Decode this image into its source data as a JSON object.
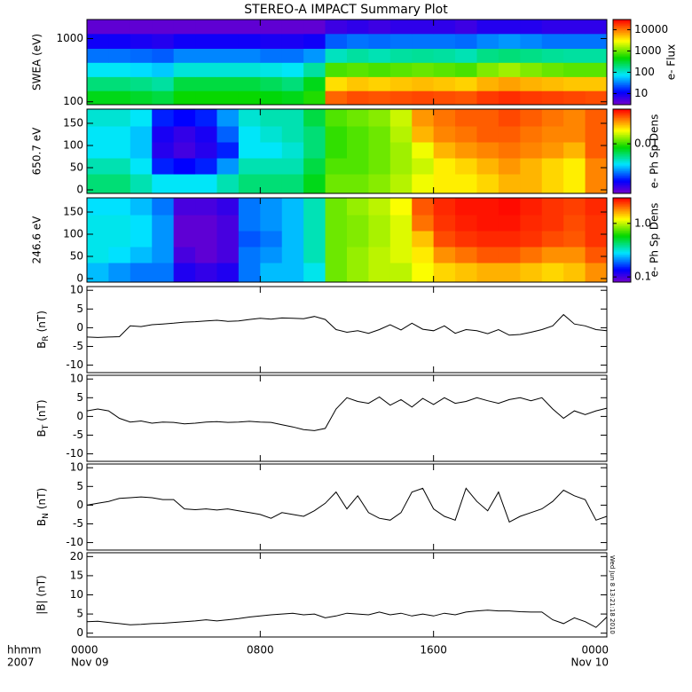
{
  "title": "STEREO-A IMPACT Summary Plot",
  "timestamp": "Wed Jun  8 13:21:18 2010",
  "x_axis": {
    "xlim": [
      0,
      24
    ],
    "xticks": [
      {
        "value": 0,
        "label": "0000"
      },
      {
        "value": 8,
        "label": "0800"
      },
      {
        "value": 16,
        "label": "1600"
      },
      {
        "value": 24,
        "label": "0000"
      }
    ],
    "dates": [
      {
        "value": 0,
        "label": "Nov 09"
      },
      {
        "value": 24,
        "label": "Nov 10"
      }
    ],
    "left_labels": [
      "hhmm",
      "2007"
    ],
    "x": [
      0,
      0.5,
      1,
      1.5,
      2,
      2.5,
      3,
      3.5,
      4,
      4.5,
      5,
      5.5,
      6,
      6.5,
      7,
      7.5,
      8,
      8.5,
      9,
      9.5,
      10,
      10.5,
      11,
      11.5,
      12,
      12.5,
      13,
      13.5,
      14,
      14.5,
      15,
      15.5,
      16,
      16.5,
      17,
      17.5,
      18,
      18.5,
      19,
      19.5,
      20,
      20.5,
      21,
      21.5,
      22,
      22.5,
      23,
      23.5,
      24
    ],
    "xbins": [
      0,
      1,
      2,
      3,
      4,
      5,
      6,
      7,
      8,
      9,
      10,
      11,
      12,
      13,
      14,
      15,
      16,
      17,
      18,
      19,
      20,
      21,
      22,
      23,
      24
    ]
  },
  "chart_data": [
    {
      "type": "heatmap",
      "ylabel": "SWEA (eV)",
      "ylog": true,
      "ylim": [
        90,
        2000
      ],
      "yticks": [
        100,
        1000
      ],
      "ybins": [
        90,
        150,
        250,
        420,
        700,
        1200,
        2000
      ],
      "values": [
        [
          400,
          400,
          350,
          300,
          500,
          500,
          500,
          500,
          450,
          400,
          600,
          12000,
          15000,
          14000,
          15000,
          16000,
          15000,
          14000,
          18000,
          20000,
          18000,
          17000,
          16000,
          15000
        ],
        [
          200,
          200,
          180,
          150,
          300,
          300,
          300,
          300,
          250,
          200,
          400,
          4000,
          5000,
          4500,
          5000,
          5500,
          5000,
          4500,
          6000,
          7000,
          6000,
          5500,
          5000,
          5000
        ],
        [
          80,
          80,
          70,
          60,
          100,
          100,
          100,
          100,
          90,
          80,
          150,
          800,
          900,
          800,
          900,
          1000,
          900,
          800,
          1200,
          1500,
          1200,
          1000,
          900,
          900
        ],
        [
          30,
          30,
          28,
          25,
          35,
          35,
          35,
          35,
          30,
          30,
          40,
          120,
          150,
          130,
          150,
          160,
          150,
          130,
          180,
          200,
          180,
          160,
          150,
          150
        ],
        [
          10,
          10,
          9,
          8,
          10,
          10,
          10,
          10,
          9,
          9,
          10,
          25,
          30,
          28,
          30,
          30,
          30,
          28,
          35,
          40,
          35,
          30,
          30,
          30
        ],
        [
          4,
          4,
          4,
          4,
          4,
          4,
          4,
          4,
          4,
          4,
          4,
          6,
          7,
          6,
          7,
          7,
          7,
          6,
          8,
          8,
          8,
          7,
          7,
          7
        ]
      ],
      "colorbar": {
        "label": "e- Flux",
        "log": true,
        "lim": [
          3,
          30000
        ],
        "ticks": [
          10,
          100,
          1000,
          10000
        ]
      }
    },
    {
      "type": "heatmap",
      "ylabel": "650.7 eV",
      "ylog": false,
      "ylim": [
        -8,
        182
      ],
      "yticks": [
        0,
        50,
        100,
        150
      ],
      "ybins": [
        -8,
        36,
        72,
        108,
        144,
        182
      ],
      "values": [
        [
          0.006,
          0.006,
          0.005,
          0.004,
          0.004,
          0.004,
          0.005,
          0.006,
          0.006,
          0.006,
          0.008,
          0.012,
          0.012,
          0.013,
          0.015,
          0.018,
          0.02,
          0.02,
          0.022,
          0.025,
          0.025,
          0.022,
          0.02,
          0.03
        ],
        [
          0.005,
          0.005,
          0.004,
          0.002,
          0.0018,
          0.002,
          0.003,
          0.005,
          0.005,
          0.005,
          0.007,
          0.011,
          0.011,
          0.012,
          0.014,
          0.016,
          0.02,
          0.022,
          0.025,
          0.028,
          0.025,
          0.022,
          0.02,
          0.03
        ],
        [
          0.004,
          0.004,
          0.0035,
          0.0015,
          0.0013,
          0.0015,
          0.002,
          0.004,
          0.004,
          0.0045,
          0.006,
          0.01,
          0.011,
          0.012,
          0.014,
          0.018,
          0.025,
          0.028,
          0.03,
          0.032,
          0.03,
          0.028,
          0.025,
          0.035
        ],
        [
          0.004,
          0.004,
          0.0035,
          0.0016,
          0.0014,
          0.0016,
          0.0025,
          0.004,
          0.0045,
          0.005,
          0.006,
          0.01,
          0.011,
          0.012,
          0.015,
          0.025,
          0.03,
          0.032,
          0.035,
          0.035,
          0.032,
          0.03,
          0.03,
          0.035
        ],
        [
          0.0045,
          0.0045,
          0.004,
          0.002,
          0.0018,
          0.002,
          0.003,
          0.0045,
          0.005,
          0.005,
          0.007,
          0.011,
          0.012,
          0.013,
          0.016,
          0.028,
          0.032,
          0.035,
          0.035,
          0.038,
          0.035,
          0.032,
          0.03,
          0.035
        ]
      ],
      "colorbar": {
        "label": "e- Ph Sp Dens",
        "log": true,
        "lim": [
          0.001,
          0.05
        ],
        "ticks": [
          0.01
        ]
      }
    },
    {
      "type": "heatmap",
      "ylabel": "246.6 eV",
      "ylog": false,
      "ylim": [
        -8,
        182
      ],
      "yticks": [
        0,
        50,
        100,
        150
      ],
      "ybins": [
        -8,
        36,
        72,
        108,
        144,
        182
      ],
      "values": [
        [
          0.25,
          0.22,
          0.2,
          0.2,
          0.12,
          0.11,
          0.12,
          0.2,
          0.25,
          0.25,
          0.3,
          0.8,
          0.9,
          1.0,
          1.0,
          1.2,
          1.4,
          1.5,
          1.6,
          1.6,
          1.5,
          1.4,
          1.5,
          1.8
        ],
        [
          0.3,
          0.28,
          0.25,
          0.22,
          0.1,
          0.09,
          0.1,
          0.2,
          0.22,
          0.25,
          0.35,
          0.8,
          0.9,
          1.0,
          1.1,
          1.3,
          1.8,
          2.0,
          2.2,
          2.2,
          2.0,
          1.8,
          1.8,
          2.2
        ],
        [
          0.3,
          0.3,
          0.28,
          0.22,
          0.09,
          0.09,
          0.1,
          0.18,
          0.2,
          0.25,
          0.35,
          0.8,
          0.85,
          0.95,
          1.1,
          1.5,
          2.3,
          2.5,
          2.6,
          2.6,
          2.5,
          2.3,
          2.2,
          2.5
        ],
        [
          0.3,
          0.3,
          0.28,
          0.22,
          0.09,
          0.09,
          0.1,
          0.2,
          0.22,
          0.25,
          0.35,
          0.8,
          0.85,
          0.95,
          1.1,
          2.0,
          2.5,
          2.7,
          2.8,
          2.8,
          2.6,
          2.5,
          2.3,
          2.5
        ],
        [
          0.28,
          0.28,
          0.25,
          0.2,
          0.1,
          0.1,
          0.11,
          0.2,
          0.22,
          0.25,
          0.35,
          0.8,
          0.9,
          1.0,
          1.2,
          2.2,
          2.6,
          2.8,
          2.8,
          2.9,
          2.7,
          2.5,
          2.4,
          2.6
        ]
      ],
      "colorbar": {
        "label": "e- Ph Sp Dens",
        "log": true,
        "lim": [
          0.08,
          3
        ],
        "ticks": [
          0.1,
          {
            "value": 1,
            "label": "1.0"
          }
        ]
      }
    },
    {
      "type": "line",
      "ylabel": [
        "B",
        "R",
        "(nT)"
      ],
      "ylim": [
        -12,
        11
      ],
      "yticks": [
        -10,
        -5,
        0,
        5,
        10
      ],
      "color": "#000000",
      "values": [
        -2.5,
        -2.6,
        -2.5,
        -2.4,
        0.5,
        0.3,
        0.8,
        1.0,
        1.2,
        1.5,
        1.6,
        1.8,
        2.0,
        1.7,
        1.8,
        2.2,
        2.5,
        2.3,
        2.6,
        2.5,
        2.4,
        3.0,
        2.2,
        -0.5,
        -1.2,
        -0.8,
        -1.5,
        -0.5,
        0.8,
        -0.6,
        1.2,
        -0.4,
        -0.8,
        0.5,
        -1.5,
        -0.5,
        -0.8,
        -1.6,
        -0.5,
        -2.0,
        -1.8,
        -1.2,
        -0.5,
        0.5,
        3.5,
        1.0,
        0.5,
        -0.5,
        -0.8
      ]
    },
    {
      "type": "line",
      "ylabel": [
        "B",
        "T",
        "(nT)"
      ],
      "ylim": [
        -12,
        11
      ],
      "yticks": [
        -10,
        -5,
        0,
        5,
        10
      ],
      "color": "#000000",
      "values": [
        1.5,
        2.0,
        1.5,
        -0.5,
        -1.5,
        -1.2,
        -1.8,
        -1.5,
        -1.6,
        -2.0,
        -1.8,
        -1.5,
        -1.4,
        -1.6,
        -1.5,
        -1.3,
        -1.5,
        -1.6,
        -2.2,
        -2.8,
        -3.5,
        -3.8,
        -3.2,
        2.0,
        5.0,
        4.0,
        3.5,
        5.2,
        3.0,
        4.5,
        2.5,
        4.8,
        3.2,
        5.0,
        3.5,
        4.0,
        5.0,
        4.2,
        3.5,
        4.5,
        5.0,
        4.2,
        5.0,
        2.0,
        -0.5,
        1.5,
        0.5,
        1.5,
        2.2
      ]
    },
    {
      "type": "line",
      "ylabel": [
        "B",
        "N",
        "(nT)"
      ],
      "ylim": [
        -12,
        11
      ],
      "yticks": [
        -10,
        -5,
        0,
        5,
        10
      ],
      "color": "#000000",
      "values": [
        0,
        0.5,
        1.0,
        1.8,
        2.0,
        2.2,
        2.0,
        1.5,
        1.5,
        -1.0,
        -1.2,
        -1.0,
        -1.3,
        -1.0,
        -1.5,
        -2.0,
        -2.5,
        -3.5,
        -2.0,
        -2.5,
        -3.0,
        -1.5,
        0.5,
        3.5,
        -1.0,
        2.5,
        -2.0,
        -3.5,
        -4.0,
        -2.0,
        3.5,
        4.5,
        -1.0,
        -3.0,
        -4.0,
        4.5,
        1.0,
        -1.5,
        3.5,
        -4.5,
        -3.0,
        -2.0,
        -1.0,
        1.0,
        4.0,
        2.5,
        1.5,
        -4.0,
        -3.0
      ]
    },
    {
      "type": "line",
      "ylabel": "|B| (nT)",
      "ylim": [
        -1,
        21
      ],
      "yticks": [
        0,
        5,
        10,
        15,
        20
      ],
      "color": "#000000",
      "values": [
        3.0,
        3.1,
        2.8,
        2.5,
        2.2,
        2.3,
        2.5,
        2.6,
        2.8,
        3.0,
        3.2,
        3.5,
        3.2,
        3.5,
        3.8,
        4.2,
        4.5,
        4.8,
        5.0,
        5.2,
        4.8,
        5.0,
        4.0,
        4.5,
        5.2,
        5.0,
        4.8,
        5.5,
        4.8,
        5.2,
        4.5,
        5.0,
        4.5,
        5.2,
        4.8,
        5.5,
        5.8,
        6.0,
        5.8,
        5.8,
        5.6,
        5.5,
        5.5,
        3.5,
        2.5,
        4.0,
        3.0,
        1.5,
        4.2
      ]
    }
  ]
}
